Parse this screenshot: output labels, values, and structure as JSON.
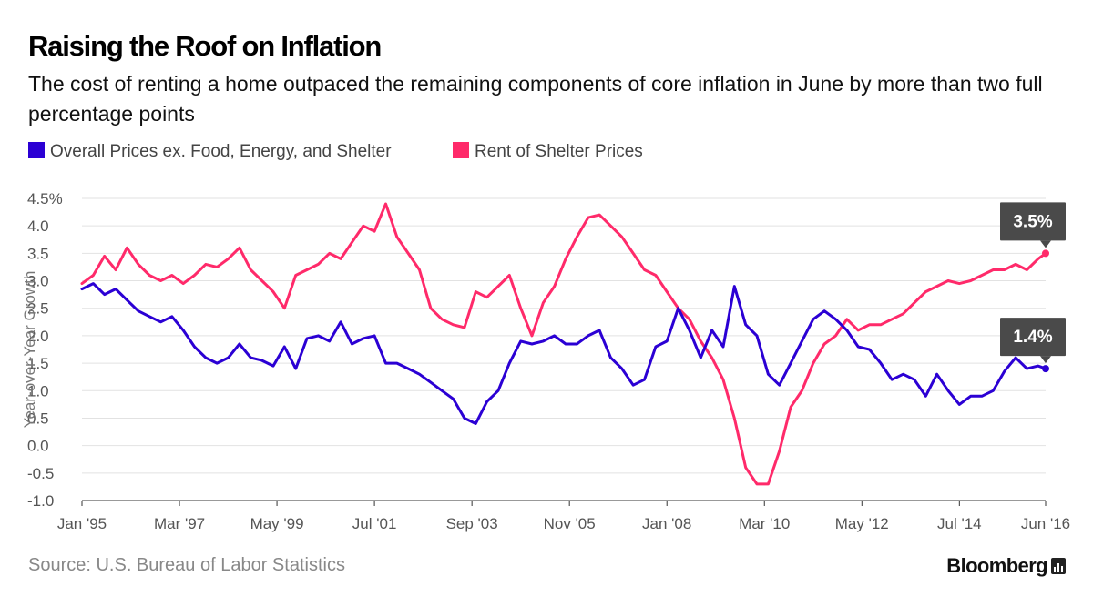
{
  "header": {
    "title": "Raising the Roof on Inflation",
    "subtitle": "The cost of renting a home outpaced the remaining components of core inflation in June by more than two full percentage points"
  },
  "legend": [
    {
      "label": "Overall Prices ex. Food, Energy, and Shelter",
      "color": "#2b00d4"
    },
    {
      "label": "Rent of Shelter Prices",
      "color": "#ff2a6a"
    }
  ],
  "footer": {
    "source": "Source: U.S. Bureau of Labor Statistics",
    "brand": "Bloomberg"
  },
  "chart_data": {
    "type": "line",
    "title": "Raising the Roof on Inflation",
    "ylabel": "Year-over-Year Growth",
    "ylim": [
      -1.0,
      4.5
    ],
    "y_ticks": [
      "4.5%",
      "4.0",
      "3.5",
      "3.0",
      "2.5",
      "2.0",
      "1.5",
      "1.0",
      "0.5",
      "0.0",
      "-0.5",
      "-1.0"
    ],
    "y_tick_values": [
      4.5,
      4.0,
      3.5,
      3.0,
      2.5,
      2.0,
      1.5,
      1.0,
      0.5,
      0.0,
      -0.5,
      -1.0
    ],
    "x_range": [
      "1995-01",
      "2016-06"
    ],
    "x_ticks": [
      {
        "label": "Jan '95",
        "date": "1995-01"
      },
      {
        "label": "Mar '97",
        "date": "1997-03"
      },
      {
        "label": "May '99",
        "date": "1999-05"
      },
      {
        "label": "Jul '01",
        "date": "2001-07"
      },
      {
        "label": "Sep '03",
        "date": "2003-09"
      },
      {
        "label": "Nov '05",
        "date": "2005-11"
      },
      {
        "label": "Jan '08",
        "date": "2008-01"
      },
      {
        "label": "Mar '10",
        "date": "2010-03"
      },
      {
        "label": "May '12",
        "date": "2012-05"
      },
      {
        "label": "Jul '14",
        "date": "2014-07"
      },
      {
        "label": "Jun '16",
        "date": "2016-06"
      }
    ],
    "grid": true,
    "series": [
      {
        "name": "Overall Prices ex. Food, Energy, and Shelter",
        "color": "#2b00d4",
        "points": [
          [
            "1995-01",
            2.85
          ],
          [
            "1995-04",
            2.95
          ],
          [
            "1995-07",
            2.75
          ],
          [
            "1995-10",
            2.85
          ],
          [
            "1996-01",
            2.65
          ],
          [
            "1996-04",
            2.45
          ],
          [
            "1996-07",
            2.35
          ],
          [
            "1996-10",
            2.25
          ],
          [
            "1997-01",
            2.35
          ],
          [
            "1997-04",
            2.1
          ],
          [
            "1997-07",
            1.8
          ],
          [
            "1997-10",
            1.6
          ],
          [
            "1998-01",
            1.5
          ],
          [
            "1998-04",
            1.6
          ],
          [
            "1998-07",
            1.85
          ],
          [
            "1998-10",
            1.6
          ],
          [
            "1999-01",
            1.55
          ],
          [
            "1999-04",
            1.45
          ],
          [
            "1999-07",
            1.8
          ],
          [
            "1999-10",
            1.4
          ],
          [
            "2000-01",
            1.95
          ],
          [
            "2000-04",
            2.0
          ],
          [
            "2000-07",
            1.9
          ],
          [
            "2000-10",
            2.25
          ],
          [
            "2001-01",
            1.85
          ],
          [
            "2001-04",
            1.95
          ],
          [
            "2001-07",
            2.0
          ],
          [
            "2001-10",
            1.5
          ],
          [
            "2002-01",
            1.5
          ],
          [
            "2002-04",
            1.4
          ],
          [
            "2002-07",
            1.3
          ],
          [
            "2002-10",
            1.15
          ],
          [
            "2003-01",
            1.0
          ],
          [
            "2003-04",
            0.85
          ],
          [
            "2003-07",
            0.5
          ],
          [
            "2003-10",
            0.4
          ],
          [
            "2004-01",
            0.8
          ],
          [
            "2004-04",
            1.0
          ],
          [
            "2004-07",
            1.5
          ],
          [
            "2004-10",
            1.9
          ],
          [
            "2005-01",
            1.85
          ],
          [
            "2005-04",
            1.9
          ],
          [
            "2005-07",
            2.0
          ],
          [
            "2005-10",
            1.85
          ],
          [
            "2006-01",
            1.85
          ],
          [
            "2006-04",
            2.0
          ],
          [
            "2006-07",
            2.1
          ],
          [
            "2006-10",
            1.6
          ],
          [
            "2007-01",
            1.4
          ],
          [
            "2007-04",
            1.1
          ],
          [
            "2007-07",
            1.2
          ],
          [
            "2007-10",
            1.8
          ],
          [
            "2008-01",
            1.9
          ],
          [
            "2008-04",
            2.5
          ],
          [
            "2008-07",
            2.1
          ],
          [
            "2008-10",
            1.6
          ],
          [
            "2009-01",
            2.1
          ],
          [
            "2009-04",
            1.8
          ],
          [
            "2009-07",
            2.9
          ],
          [
            "2009-10",
            2.2
          ],
          [
            "2010-01",
            2.0
          ],
          [
            "2010-04",
            1.3
          ],
          [
            "2010-07",
            1.1
          ],
          [
            "2010-10",
            1.5
          ],
          [
            "2011-01",
            1.9
          ],
          [
            "2011-04",
            2.3
          ],
          [
            "2011-07",
            2.45
          ],
          [
            "2011-10",
            2.3
          ],
          [
            "2012-01",
            2.1
          ],
          [
            "2012-04",
            1.8
          ],
          [
            "2012-07",
            1.75
          ],
          [
            "2012-10",
            1.5
          ],
          [
            "2013-01",
            1.2
          ],
          [
            "2013-04",
            1.3
          ],
          [
            "2013-07",
            1.2
          ],
          [
            "2013-10",
            0.9
          ],
          [
            "2014-01",
            1.3
          ],
          [
            "2014-04",
            1.0
          ],
          [
            "2014-07",
            0.75
          ],
          [
            "2014-10",
            0.9
          ],
          [
            "2015-01",
            0.9
          ],
          [
            "2015-04",
            1.0
          ],
          [
            "2015-07",
            1.35
          ],
          [
            "2015-10",
            1.6
          ],
          [
            "2016-01",
            1.4
          ],
          [
            "2016-04",
            1.45
          ],
          [
            "2016-06",
            1.4
          ]
        ]
      },
      {
        "name": "Rent of Shelter Prices",
        "color": "#ff2a6a",
        "points": [
          [
            "1995-01",
            2.95
          ],
          [
            "1995-04",
            3.1
          ],
          [
            "1995-07",
            3.45
          ],
          [
            "1995-10",
            3.2
          ],
          [
            "1996-01",
            3.6
          ],
          [
            "1996-04",
            3.3
          ],
          [
            "1996-07",
            3.1
          ],
          [
            "1996-10",
            3.0
          ],
          [
            "1997-01",
            3.1
          ],
          [
            "1997-04",
            2.95
          ],
          [
            "1997-07",
            3.1
          ],
          [
            "1997-10",
            3.3
          ],
          [
            "1998-01",
            3.25
          ],
          [
            "1998-04",
            3.4
          ],
          [
            "1998-07",
            3.6
          ],
          [
            "1998-10",
            3.2
          ],
          [
            "1999-01",
            3.0
          ],
          [
            "1999-04",
            2.8
          ],
          [
            "1999-07",
            2.5
          ],
          [
            "1999-10",
            3.1
          ],
          [
            "2000-01",
            3.2
          ],
          [
            "2000-04",
            3.3
          ],
          [
            "2000-07",
            3.5
          ],
          [
            "2000-10",
            3.4
          ],
          [
            "2001-01",
            3.7
          ],
          [
            "2001-04",
            4.0
          ],
          [
            "2001-07",
            3.9
          ],
          [
            "2001-10",
            4.4
          ],
          [
            "2002-01",
            3.8
          ],
          [
            "2002-04",
            3.5
          ],
          [
            "2002-07",
            3.2
          ],
          [
            "2002-10",
            2.5
          ],
          [
            "2003-01",
            2.3
          ],
          [
            "2003-04",
            2.2
          ],
          [
            "2003-07",
            2.15
          ],
          [
            "2003-10",
            2.8
          ],
          [
            "2004-01",
            2.7
          ],
          [
            "2004-04",
            2.9
          ],
          [
            "2004-07",
            3.1
          ],
          [
            "2004-10",
            2.5
          ],
          [
            "2005-01",
            2.0
          ],
          [
            "2005-04",
            2.6
          ],
          [
            "2005-07",
            2.9
          ],
          [
            "2005-10",
            3.4
          ],
          [
            "2006-01",
            3.8
          ],
          [
            "2006-04",
            4.15
          ],
          [
            "2006-07",
            4.2
          ],
          [
            "2006-10",
            4.0
          ],
          [
            "2007-01",
            3.8
          ],
          [
            "2007-04",
            3.5
          ],
          [
            "2007-07",
            3.2
          ],
          [
            "2007-10",
            3.1
          ],
          [
            "2008-01",
            2.8
          ],
          [
            "2008-04",
            2.5
          ],
          [
            "2008-07",
            2.3
          ],
          [
            "2008-10",
            1.9
          ],
          [
            "2009-01",
            1.6
          ],
          [
            "2009-04",
            1.2
          ],
          [
            "2009-07",
            0.5
          ],
          [
            "2009-10",
            -0.4
          ],
          [
            "2010-01",
            -0.7
          ],
          [
            "2010-04",
            -0.7
          ],
          [
            "2010-07",
            -0.1
          ],
          [
            "2010-10",
            0.7
          ],
          [
            "2011-01",
            1.0
          ],
          [
            "2011-04",
            1.5
          ],
          [
            "2011-07",
            1.85
          ],
          [
            "2011-10",
            2.0
          ],
          [
            "2012-01",
            2.3
          ],
          [
            "2012-04",
            2.1
          ],
          [
            "2012-07",
            2.2
          ],
          [
            "2012-10",
            2.2
          ],
          [
            "2013-01",
            2.3
          ],
          [
            "2013-04",
            2.4
          ],
          [
            "2013-07",
            2.6
          ],
          [
            "2013-10",
            2.8
          ],
          [
            "2014-01",
            2.9
          ],
          [
            "2014-04",
            3.0
          ],
          [
            "2014-07",
            2.95
          ],
          [
            "2014-10",
            3.0
          ],
          [
            "2015-01",
            3.1
          ],
          [
            "2015-04",
            3.2
          ],
          [
            "2015-07",
            3.2
          ],
          [
            "2015-10",
            3.3
          ],
          [
            "2016-01",
            3.2
          ],
          [
            "2016-04",
            3.4
          ],
          [
            "2016-06",
            3.5
          ]
        ]
      }
    ],
    "callouts": [
      {
        "series": "Rent of Shelter Prices",
        "text": "3.5%",
        "date": "2016-06",
        "value": 3.5
      },
      {
        "series": "Overall Prices ex. Food, Energy, and Shelter",
        "text": "1.4%",
        "date": "2016-06",
        "value": 1.4
      }
    ]
  }
}
